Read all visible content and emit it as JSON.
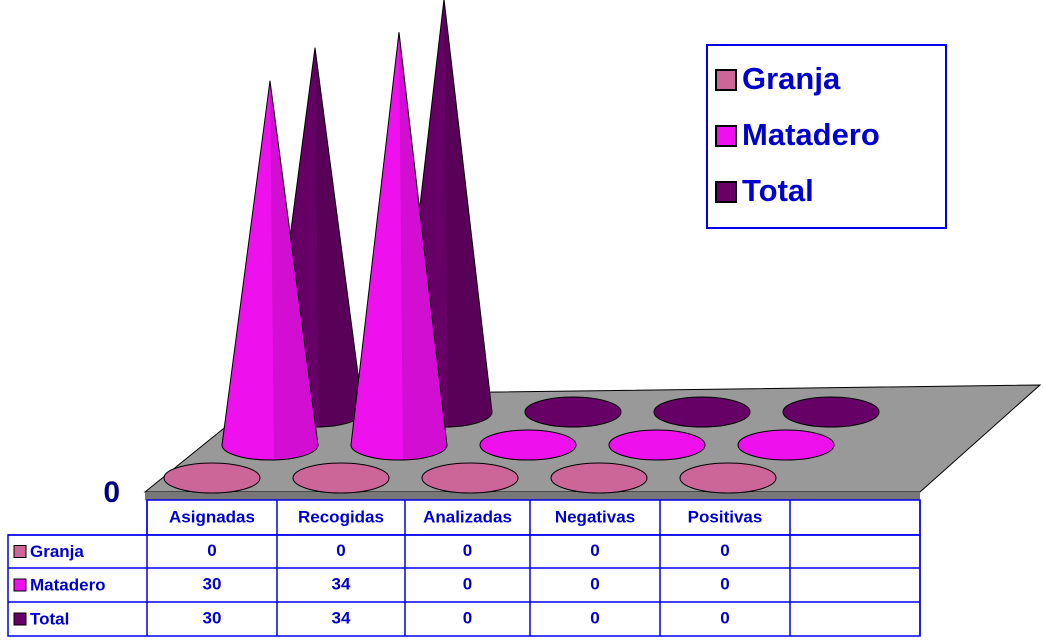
{
  "chart_data": {
    "type": "cone3d",
    "categories": [
      "Asignadas",
      "Recogidas",
      "Analizadas",
      "Negativas",
      "Positivas"
    ],
    "series": [
      {
        "name": "Granja",
        "color": "#cc6699",
        "values": [
          0,
          0,
          0,
          0,
          0
        ]
      },
      {
        "name": "Matadero",
        "color": "#ee11ee",
        "values": [
          30,
          34,
          0,
          0,
          0
        ]
      },
      {
        "name": "Total",
        "color": "#660066",
        "values": [
          30,
          34,
          0,
          0,
          0
        ]
      }
    ],
    "ylim": [
      0,
      35
    ],
    "yticks": [
      0
    ],
    "legend": "top-right",
    "data_table": true
  }
}
